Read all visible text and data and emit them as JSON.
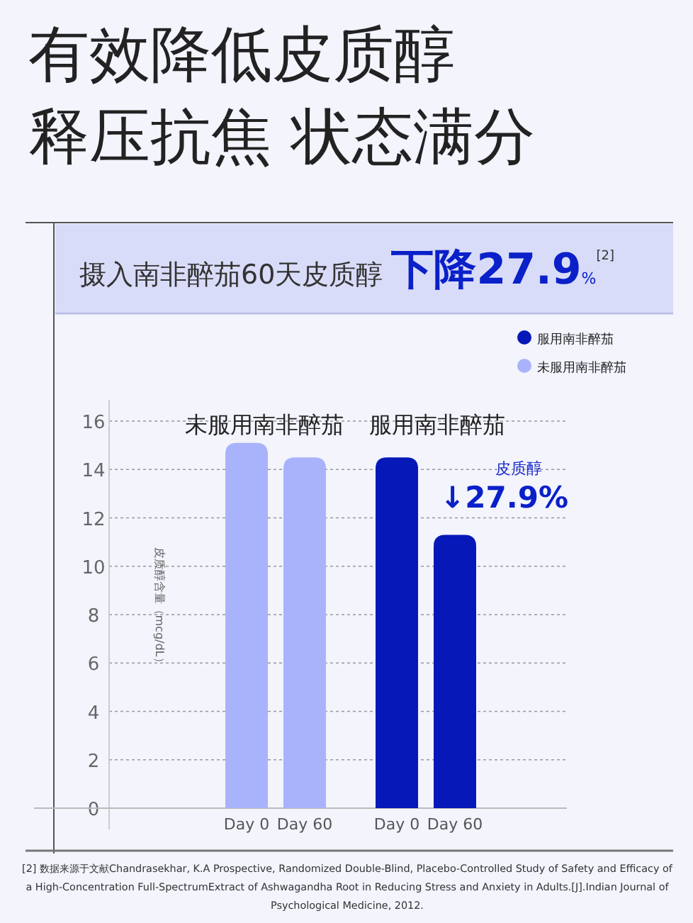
{
  "chart_data": {
    "type": "bar",
    "title": "有效降低皮质醇",
    "subtitle": "释压抗焦 状态满分",
    "ylabel": "皮质醇含量（mcg/dL）",
    "categories": [
      "Day 0",
      "Day 60",
      "Day 0",
      "Day 60"
    ],
    "series": [
      {
        "name": "服用南非醉茄",
        "color": "#0618b8",
        "values": [
          null,
          null,
          14.5,
          11.3
        ]
      },
      {
        "name": "未服用南非醉茄",
        "color": "#a9b3fb",
        "values": [
          15.1,
          14.5,
          null,
          null
        ]
      }
    ],
    "ylim": [
      0,
      16
    ],
    "yticks": [
      0,
      2,
      4,
      6,
      8,
      10,
      12,
      14,
      16
    ],
    "grid": "y",
    "legend": "top right",
    "annotations": [
      "摄入南非醉茄60天皮质醇 **下降27.9**%$^{[2]}$",
      "未服用南非醉茄",
      "服用南非醉茄",
      "皮质醇",
      "↓27.9%",
      "[2] 数据来源于文献Chandrasekhar, K.A Prospective, Randomized Double-Blind, Placebo-Controlled Study of Safety and Efficacy of a High-Concentration Full-SpectrumExtract of Ashwagandha Root in Reducing Stress and Anxiety in Adults.[J].Indian Journal of Psychological Medicine, 2012."
    ]
  }
}
